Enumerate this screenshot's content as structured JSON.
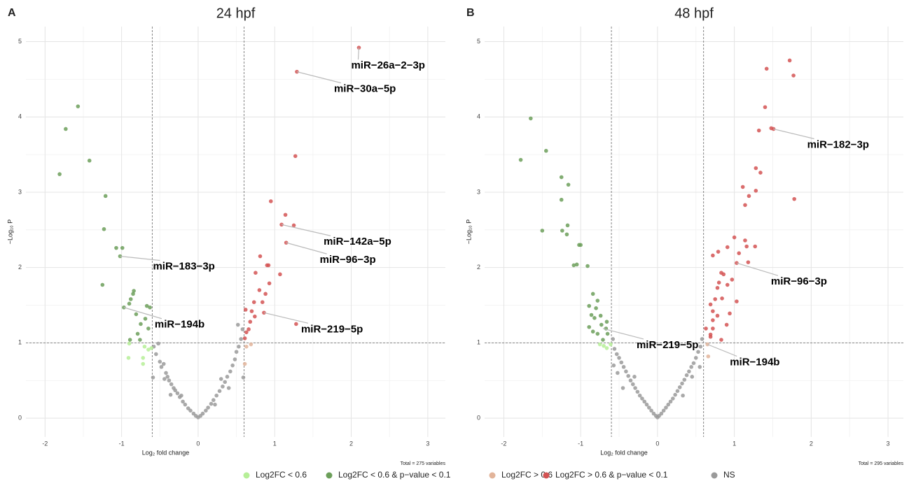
{
  "chart_data": [
    {
      "type": "scatter",
      "panel": "A",
      "title": "24 hpf",
      "xlabel": "Log₂ fold change",
      "ylabel": "−Log₁₀ P",
      "caption": "Total = 275 variables",
      "xlim": [
        -2.25,
        3.23
      ],
      "ylim": [
        -0.25,
        5.2
      ],
      "xticks": [
        -2,
        -1,
        0,
        1,
        2,
        3
      ],
      "yticks": [
        0,
        1,
        2,
        3,
        4,
        5
      ],
      "vlines": [
        -0.6,
        0.6
      ],
      "hline": 1,
      "grid": true,
      "legend": "bottom",
      "series": [
        {
          "name": "Log2FC < 0.6",
          "color": "#b6ef98",
          "x": [
            -0.91,
            -0.72,
            -0.72,
            -0.65,
            -0.61,
            -0.9,
            -0.7
          ],
          "values": [
            0.8,
            0.8,
            0.72,
            0.91,
            0.93,
            0.99,
            0.95
          ]
        },
        {
          "name": "Log2FC < 0.6 & p−value < 0.1",
          "color": "#6c9f5a",
          "x": [
            -1.57,
            -1.73,
            -1.42,
            -1.81,
            -1.21,
            -1.23,
            -1.07,
            -0.99,
            -1.02,
            -1.25,
            -0.84,
            -0.85,
            -0.88,
            -0.9,
            -0.97,
            -0.67,
            -0.63,
            -0.81,
            -0.69,
            -0.75,
            -0.65,
            -0.79,
            -0.89,
            -0.76
          ],
          "values": [
            4.14,
            3.84,
            3.42,
            3.24,
            2.95,
            2.51,
            2.26,
            2.26,
            2.15,
            1.77,
            1.69,
            1.65,
            1.58,
            1.52,
            1.47,
            1.49,
            1.47,
            1.38,
            1.32,
            1.25,
            1.19,
            1.12,
            1.04,
            1.04
          ]
        },
        {
          "name": "Log2FC > 0.6",
          "color": "#e2b49a",
          "x": [
            0.69,
            0.63,
            0.61
          ],
          "values": [
            0.98,
            0.95,
            0.72
          ]
        },
        {
          "name": "Log2FC > 0.6 & p−value < 0.1",
          "color": "#d35353",
          "x": [
            2.1,
            1.29,
            1.27,
            0.95,
            1.14,
            1.09,
            1.25,
            1.15,
            0.81,
            0.9,
            0.92,
            0.75,
            1.07,
            0.93,
            0.8,
            0.88,
            0.73,
            0.84,
            0.7,
            0.62,
            0.86,
            0.74,
            0.68,
            0.66,
            1.28,
            0.63,
            0.61
          ],
          "values": [
            4.92,
            4.6,
            3.48,
            2.88,
            2.7,
            2.57,
            2.56,
            2.33,
            2.15,
            2.03,
            2.03,
            1.93,
            1.91,
            1.79,
            1.7,
            1.65,
            1.54,
            1.54,
            1.42,
            1.44,
            1.4,
            1.35,
            1.28,
            1.18,
            1.25,
            1.14,
            1.06
          ]
        },
        {
          "name": "NS",
          "color": "#9a9a9a",
          "x": [
            -0.58,
            -0.55,
            -0.52,
            -0.5,
            -0.48,
            -0.45,
            -0.42,
            -0.4,
            -0.38,
            -0.35,
            -0.32,
            -0.3,
            -0.27,
            -0.24,
            -0.2,
            -0.17,
            -0.13,
            -0.1,
            -0.06,
            -0.03,
            0,
            0.03,
            0.06,
            0.1,
            0.13,
            0.17,
            0.2,
            0.24,
            0.28,
            0.32,
            0.35,
            0.38,
            0.42,
            0.45,
            0.48,
            0.5,
            0.53,
            0.56,
            0.58,
            0.52,
            0.59,
            -0.59,
            -0.36,
            0.3,
            0.4,
            -0.44,
            0.22,
            -0.22
          ],
          "values": [
            0.95,
            0.85,
            0.99,
            0.75,
            0.68,
            0.72,
            0.6,
            0.55,
            0.5,
            0.45,
            0.4,
            0.37,
            0.33,
            0.28,
            0.22,
            0.18,
            0.13,
            0.1,
            0.06,
            0.03,
            0.01,
            0.03,
            0.06,
            0.1,
            0.14,
            0.19,
            0.24,
            0.3,
            0.36,
            0.42,
            0.48,
            0.55,
            0.62,
            0.7,
            0.78,
            0.88,
            0.95,
            1.05,
            1.18,
            1.24,
            0.54,
            0.54,
            0.31,
            0.52,
            0.4,
            0.52,
            0.18,
            0.3
          ]
        }
      ],
      "annotations": [
        {
          "text": "miR−26a−2−3p",
          "x": 2.1,
          "y": 4.92
        },
        {
          "text": "miR−30a−5p",
          "x": 1.29,
          "y": 4.6
        },
        {
          "text": "miR−142a−5p",
          "x": 1.09,
          "y": 2.57
        },
        {
          "text": "miR−96−3p",
          "x": 1.15,
          "y": 2.33
        },
        {
          "text": "miR−219−5p",
          "x": 0.86,
          "y": 1.4
        },
        {
          "text": "miR−183−3p",
          "x": -1.02,
          "y": 2.15
        },
        {
          "text": "miR−194b",
          "x": -0.97,
          "y": 1.47
        }
      ]
    },
    {
      "type": "scatter",
      "panel": "B",
      "title": "48 hpf",
      "xlabel": "Log₂ fold change",
      "ylabel": "−Log₁₀ P",
      "caption": "Total = 295 variables",
      "xlim": [
        -2.25,
        3.2
      ],
      "ylim": [
        -0.25,
        5.2
      ],
      "xticks": [
        -2,
        -1,
        0,
        1,
        2,
        3
      ],
      "yticks": [
        0,
        1,
        2,
        3,
        4,
        5
      ],
      "vlines": [
        -0.6,
        0.6
      ],
      "hline": 1,
      "grid": true,
      "legend": "bottom",
      "series": [
        {
          "name": "Log2FC < 0.6",
          "color": "#b6ef98",
          "x": [
            -0.7,
            -0.66,
            -0.75,
            -0.61
          ],
          "values": [
            0.96,
            0.93,
            0.98,
            0.98
          ]
        },
        {
          "name": "Log2FC < 0.6 & p−value < 0.1",
          "color": "#6c9f5a",
          "x": [
            -1.65,
            -1.45,
            -1.78,
            -1.25,
            -1.16,
            -1.25,
            -1.17,
            -1.24,
            -1.18,
            -1.5,
            -1.02,
            -1.0,
            -1.09,
            -1.05,
            -0.91,
            -0.84,
            -0.78,
            -0.89,
            -0.8,
            -0.86,
            -0.74,
            -0.82,
            -0.89,
            -0.73,
            -0.66,
            -0.78,
            -0.65,
            -0.71,
            -0.84,
            -0.67
          ],
          "values": [
            3.98,
            3.55,
            3.43,
            3.2,
            3.1,
            2.9,
            2.56,
            2.49,
            2.44,
            2.49,
            2.3,
            2.3,
            2.03,
            2.04,
            2.02,
            1.65,
            1.56,
            1.49,
            1.46,
            1.37,
            1.36,
            1.33,
            1.21,
            1.24,
            1.28,
            1.12,
            1.12,
            1.04,
            1.15,
            1.19
          ]
        },
        {
          "name": "Log2FC > 0.6",
          "color": "#e2b49a",
          "x": [
            0.65,
            0.66
          ],
          "values": [
            0.98,
            0.82
          ]
        },
        {
          "name": "Log2FC > 0.6 & p−value < 0.1",
          "color": "#d35353",
          "x": [
            1.72,
            1.42,
            1.77,
            1.4,
            1.48,
            1.51,
            1.32,
            1.28,
            1.34,
            1.11,
            1.28,
            1.19,
            1.78,
            1.14,
            1.0,
            1.14,
            1.27,
            1.16,
            0.91,
            1.06,
            0.79,
            0.72,
            1.03,
            1.18,
            0.83,
            0.86,
            0.97,
            0.8,
            0.91,
            0.78,
            0.75,
            0.84,
            0.69,
            0.72,
            1.03,
            0.94,
            0.78,
            0.72,
            0.9,
            0.63,
            0.72,
            0.69,
            0.83,
            0.69
          ],
          "values": [
            4.75,
            4.64,
            4.55,
            4.13,
            3.85,
            3.84,
            3.82,
            3.32,
            3.26,
            3.07,
            3.02,
            2.95,
            2.91,
            2.83,
            2.4,
            2.36,
            2.28,
            2.28,
            2.27,
            2.19,
            2.21,
            2.16,
            2.06,
            2.07,
            1.93,
            1.91,
            1.84,
            1.8,
            1.77,
            1.73,
            1.58,
            1.59,
            1.51,
            1.42,
            1.55,
            1.39,
            1.36,
            1.3,
            1.24,
            1.19,
            1.19,
            1.08,
            1.04,
            1.11
          ]
        },
        {
          "name": "NS",
          "color": "#9a9a9a",
          "x": [
            -0.58,
            -0.56,
            -0.53,
            -0.5,
            -0.47,
            -0.44,
            -0.41,
            -0.38,
            -0.35,
            -0.32,
            -0.29,
            -0.26,
            -0.23,
            -0.2,
            -0.17,
            -0.14,
            -0.11,
            -0.08,
            -0.05,
            -0.02,
            0,
            0.02,
            0.05,
            0.08,
            0.11,
            0.14,
            0.17,
            0.2,
            0.23,
            0.26,
            0.29,
            0.32,
            0.35,
            0.38,
            0.41,
            0.44,
            0.47,
            0.5,
            0.53,
            0.56,
            0.58,
            -0.57,
            -0.52,
            0.55,
            0.33,
            -0.3,
            -0.45,
            0.45
          ],
          "values": [
            1.05,
            0.92,
            0.85,
            0.8,
            0.74,
            0.68,
            0.62,
            0.56,
            0.5,
            0.45,
            0.4,
            0.35,
            0.3,
            0.26,
            0.22,
            0.18,
            0.14,
            0.1,
            0.06,
            0.03,
            0.01,
            0.03,
            0.06,
            0.1,
            0.14,
            0.18,
            0.22,
            0.26,
            0.31,
            0.36,
            0.41,
            0.46,
            0.51,
            0.57,
            0.62,
            0.68,
            0.73,
            0.8,
            0.88,
            0.95,
            1.05,
            0.7,
            0.6,
            0.68,
            0.3,
            0.55,
            0.4,
            0.55
          ]
        }
      ],
      "annotations": [
        {
          "text": "miR−182−3p",
          "x": 1.51,
          "y": 3.84
        },
        {
          "text": "miR−96−3p",
          "x": 1.03,
          "y": 2.06
        },
        {
          "text": "miR−219−5p",
          "x": -0.71,
          "y": 1.19
        },
        {
          "text": "miR−194b",
          "x": 0.65,
          "y": 0.98
        }
      ]
    }
  ]
}
